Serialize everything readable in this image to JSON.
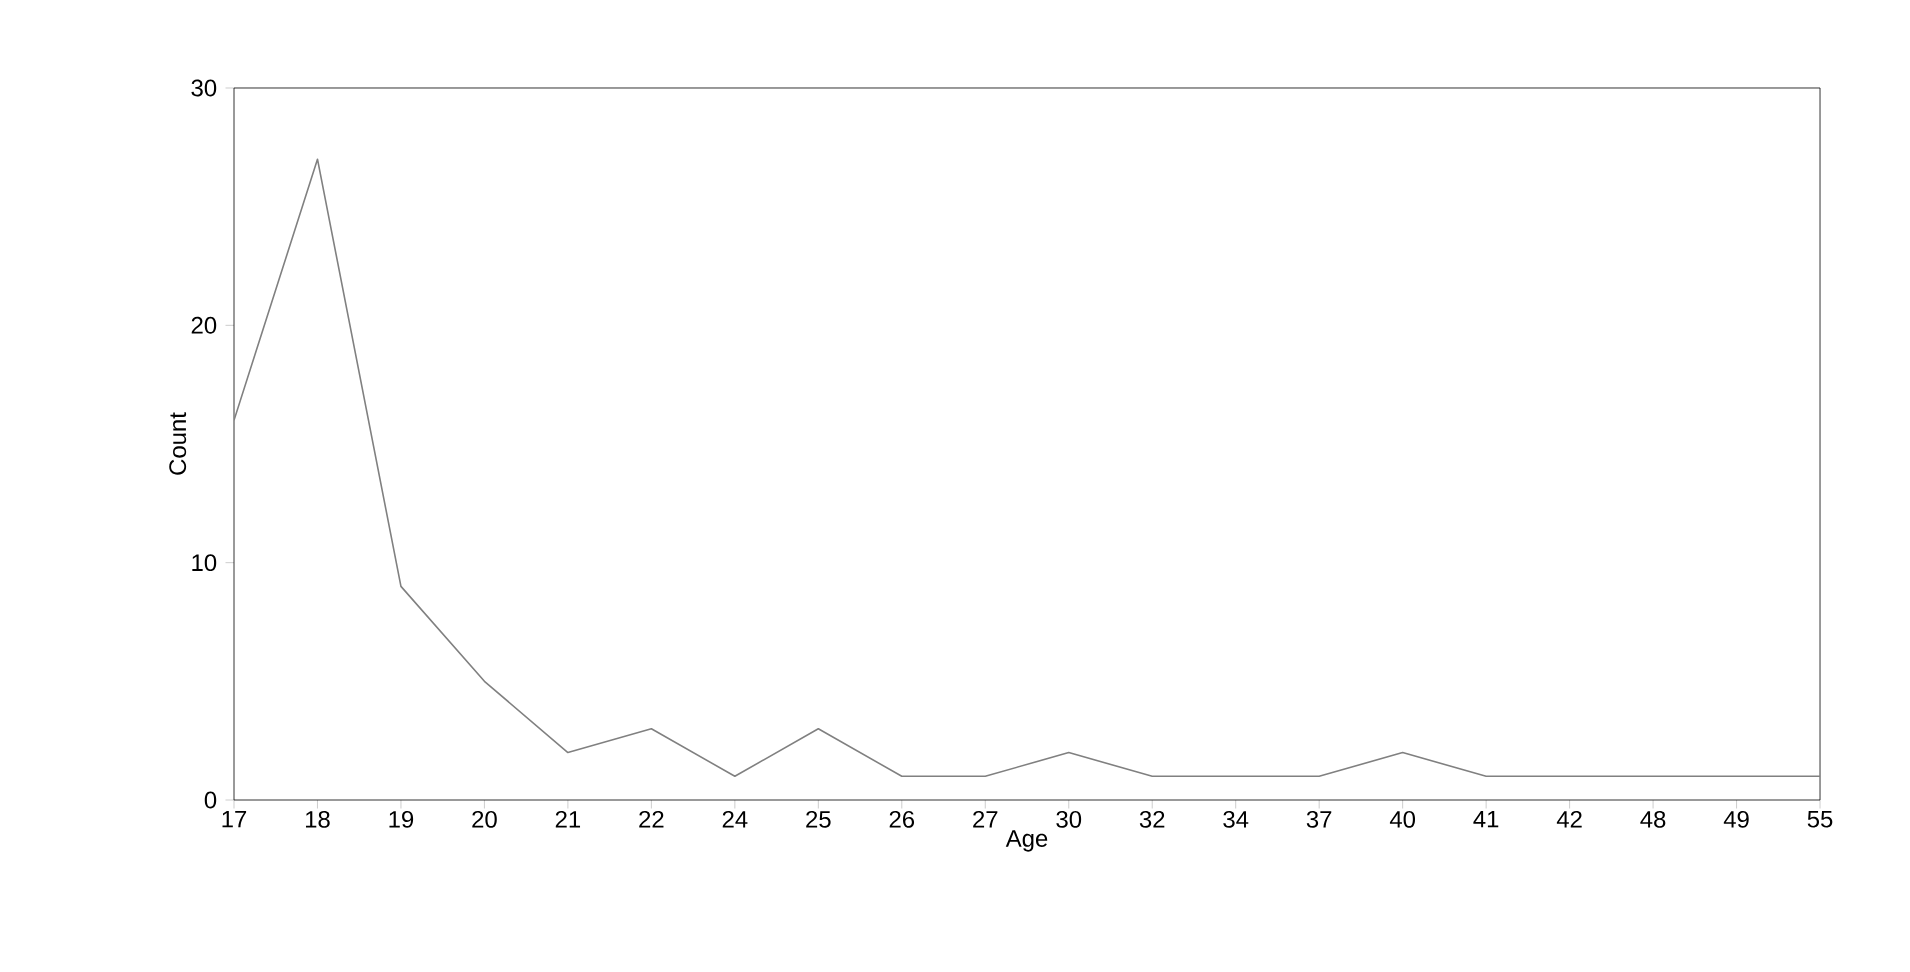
{
  "chart_data": {
    "type": "line",
    "xlabel": "Age",
    "ylabel": "Count",
    "categories": [
      "17",
      "18",
      "19",
      "20",
      "21",
      "22",
      "24",
      "25",
      "26",
      "27",
      "30",
      "32",
      "34",
      "37",
      "40",
      "41",
      "42",
      "48",
      "49",
      "55"
    ],
    "values": [
      16,
      27,
      9,
      5,
      2,
      3,
      1,
      3,
      1,
      1,
      2,
      1,
      1,
      1,
      2,
      1,
      1,
      1,
      1,
      1
    ],
    "color": "#808080",
    "ylim": [
      0,
      30
    ],
    "yticks": [
      0,
      10,
      20,
      30
    ],
    "grid": false,
    "marker": "none",
    "line_style": "solid"
  }
}
